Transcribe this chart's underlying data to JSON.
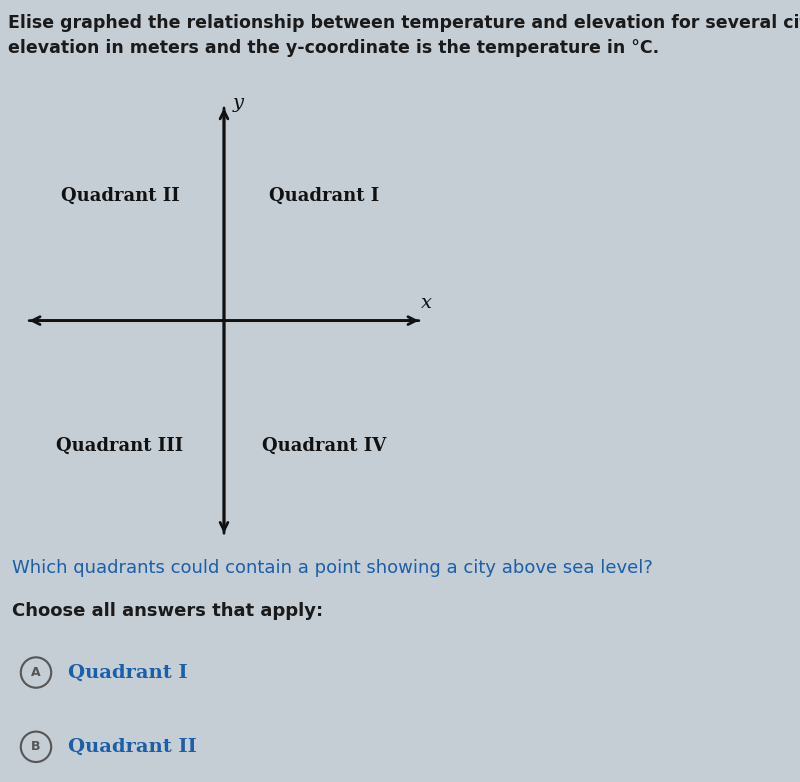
{
  "background_color": "#c5cdd5",
  "title_line1": "Elise graphed the relationship between temperature and elevation for several cities. The x-co",
  "title_line2": "elevation in meters and the y-coordinate is the temperature in °C.",
  "title_fontsize": 12.5,
  "title_color": "#1a1a1a",
  "quadrant_labels": [
    "Quadrant II",
    "Quadrant I",
    "Quadrant III",
    "Quadrant IV"
  ],
  "axis_label_x": "x",
  "axis_label_y": "y",
  "axis_color": "#111111",
  "axis_linewidth": 2.0,
  "question_text": "Which quadrants could contain a point showing a city above sea level?",
  "question_fontsize": 13,
  "question_color": "#1a5faa",
  "choose_text": "Choose all answers that apply:",
  "choose_fontsize": 13,
  "choose_color": "#1a1a1a",
  "answer_A_text": "Quadrant I",
  "answer_B_text": "Quadrant II",
  "answer_fontsize": 14,
  "answer_color": "#1a5faa",
  "circle_color": "#555555",
  "divider_color": "#999999",
  "label_fontsize": 14,
  "label_color": "#111111"
}
